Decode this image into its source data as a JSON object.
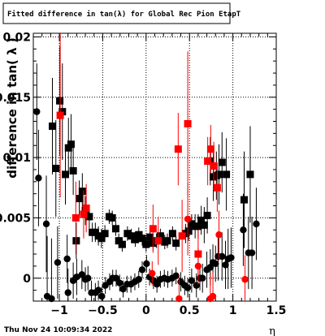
{
  "chart_data": {
    "type": "scatter",
    "title": "Fitted difference in tan(λ) for Global Rec Pion EtapT",
    "xlabel": "η",
    "ylabel": "difference in tan( λ )",
    "timestamp": "Thu Nov 24 10:09:34 2022",
    "xlim": [
      -1.3,
      1.5
    ],
    "ylim": [
      -0.0019,
      0.0203
    ],
    "x_ticks": [
      {
        "v": -1,
        "label": "−1"
      },
      {
        "v": -0.5,
        "label": "−0.5"
      },
      {
        "v": 0,
        "label": "0"
      },
      {
        "v": 0.5,
        "label": "0.5"
      },
      {
        "v": 1,
        "label": "1"
      },
      {
        "v": 1.5,
        "label": "1.5"
      }
    ],
    "y_ticks": [
      {
        "v": 0,
        "label": "0"
      },
      {
        "v": 0.005,
        "label": "0.005"
      },
      {
        "v": 0.01,
        "label": "0.01"
      },
      {
        "v": 0.015,
        "label": "0.015"
      },
      {
        "v": 0.02,
        "label": "0.02"
      }
    ],
    "grid": true,
    "series": [
      {
        "marker": "square",
        "color": "#000000",
        "points": [
          {
            "x": -1.08,
            "y": 0.0126,
            "err": 0.004
          },
          {
            "x": -1.04,
            "y": 0.0091,
            "err": 0.004
          },
          {
            "x": -0.995,
            "y": 0.0147,
            "err": 0.0045
          },
          {
            "x": -0.965,
            "y": 0.0138,
            "err": 0.004
          },
          {
            "x": -0.93,
            "y": 0.0086,
            "err": 0.0025
          },
          {
            "x": -0.895,
            "y": 0.0108,
            "err": 0.0025
          },
          {
            "x": -0.865,
            "y": 0.0111,
            "err": 0.0025
          },
          {
            "x": -0.84,
            "y": 0.0089,
            "err": 0.002
          },
          {
            "x": -0.805,
            "y": 0.0031,
            "err": 0.0015
          },
          {
            "x": -0.77,
            "y": 0.0066,
            "err": 0.0015
          },
          {
            "x": -0.735,
            "y": 0.0072,
            "err": 0.0015
          },
          {
            "x": -0.7,
            "y": 0.0056,
            "err": 0.0012
          },
          {
            "x": -0.655,
            "y": 0.0051,
            "err": 0.001
          },
          {
            "x": -0.62,
            "y": 0.0038,
            "err": 0.0008
          },
          {
            "x": -0.585,
            "y": 0.0038,
            "err": 0.0008
          },
          {
            "x": -0.55,
            "y": 0.0035,
            "err": 0.0008
          },
          {
            "x": -0.515,
            "y": 0.0033,
            "err": 0.0008
          },
          {
            "x": -0.475,
            "y": 0.0037,
            "err": 0.0007
          },
          {
            "x": -0.425,
            "y": 0.0051,
            "err": 0.0006
          },
          {
            "x": -0.39,
            "y": 0.005,
            "err": 0.0006
          },
          {
            "x": -0.35,
            "y": 0.0041,
            "err": 0.0006
          },
          {
            "x": -0.315,
            "y": 0.0031,
            "err": 0.0006
          },
          {
            "x": -0.275,
            "y": 0.0028,
            "err": 0.0006
          },
          {
            "x": -0.215,
            "y": 0.0037,
            "err": 0.0006
          },
          {
            "x": -0.17,
            "y": 0.0035,
            "err": 0.0006
          },
          {
            "x": -0.125,
            "y": 0.0032,
            "err": 0.0006
          },
          {
            "x": -0.085,
            "y": 0.0036,
            "err": 0.0006
          },
          {
            "x": -0.045,
            "y": 0.0033,
            "err": 0.0006
          },
          {
            "x": 0.0,
            "y": 0.0028,
            "err": 0.0006
          },
          {
            "x": 0.045,
            "y": 0.0034,
            "err": 0.0006
          },
          {
            "x": 0.08,
            "y": 0.0029,
            "err": 0.0006
          },
          {
            "x": 0.12,
            "y": 0.0031,
            "err": 0.0006
          },
          {
            "x": 0.165,
            "y": 0.0035,
            "err": 0.0006
          },
          {
            "x": 0.215,
            "y": 0.003,
            "err": 0.0006
          },
          {
            "x": 0.245,
            "y": 0.0031,
            "err": 0.0006
          },
          {
            "x": 0.305,
            "y": 0.0037,
            "err": 0.0006
          },
          {
            "x": 0.345,
            "y": 0.0029,
            "err": 0.0006
          },
          {
            "x": 0.455,
            "y": 0.0037,
            "err": 0.0008
          },
          {
            "x": 0.49,
            "y": 0.0039,
            "err": 0.0008
          },
          {
            "x": 0.525,
            "y": 0.0045,
            "err": 0.0008
          },
          {
            "x": 0.565,
            "y": 0.0043,
            "err": 0.001
          },
          {
            "x": 0.6,
            "y": 0.0043,
            "err": 0.001
          },
          {
            "x": 0.635,
            "y": 0.0048,
            "err": 0.0012
          },
          {
            "x": 0.67,
            "y": 0.0044,
            "err": 0.0015
          },
          {
            "x": 0.705,
            "y": 0.0052,
            "err": 0.0015
          },
          {
            "x": 0.74,
            "y": 0.0097,
            "err": 0.002
          },
          {
            "x": 0.775,
            "y": 0.0084,
            "err": 0.002
          },
          {
            "x": 0.81,
            "y": 0.0085,
            "err": 0.002
          },
          {
            "x": 0.84,
            "y": 0.0086,
            "err": 0.0025
          },
          {
            "x": 0.875,
            "y": 0.0096,
            "err": 0.0025
          },
          {
            "x": 0.925,
            "y": 0.0086,
            "err": 0.003
          },
          {
            "x": 1.13,
            "y": 0.0065,
            "err": 0.004
          },
          {
            "x": 1.2,
            "y": 0.0086,
            "err": 0.004
          }
        ]
      },
      {
        "marker": "circle",
        "color": "#000000",
        "points": [
          {
            "x": -1.26,
            "y": 0.0138,
            "err": 0.004
          },
          {
            "x": -1.24,
            "y": 0.0083,
            "err": 0.004
          },
          {
            "x": -1.15,
            "y": 0.0045,
            "err": 0.004
          },
          {
            "x": -1.14,
            "y": -0.0015,
            "err": 0.005
          },
          {
            "x": -1.09,
            "y": -0.0017,
            "err": 0.005
          },
          {
            "x": -1.02,
            "y": 0.0013,
            "err": 0.003
          },
          {
            "x": -0.91,
            "y": 0.0016,
            "err": 0.002
          },
          {
            "x": -0.9,
            "y": -0.0012,
            "err": 0.002
          },
          {
            "x": -0.84,
            "y": -0.0002,
            "err": 0.0015
          },
          {
            "x": -0.8,
            "y": 0.0001,
            "err": 0.0015
          },
          {
            "x": -0.74,
            "y": 0.0003,
            "err": 0.0012
          },
          {
            "x": -0.7,
            "y": -0.0001,
            "err": 0.001
          },
          {
            "x": -0.67,
            "y": 0.0,
            "err": 0.001
          },
          {
            "x": -0.63,
            "y": -0.0012,
            "err": 0.001
          },
          {
            "x": -0.585,
            "y": -0.0012,
            "err": 0.0008
          },
          {
            "x": -0.55,
            "y": -0.001,
            "err": 0.0008
          },
          {
            "x": -0.51,
            "y": -0.0015,
            "err": 0.0008
          },
          {
            "x": -0.47,
            "y": -0.0006,
            "err": 0.0007
          },
          {
            "x": -0.42,
            "y": -0.0003,
            "err": 0.0007
          },
          {
            "x": -0.385,
            "y": 0.0,
            "err": 0.0007
          },
          {
            "x": -0.345,
            "y": 0.0,
            "err": 0.0007
          },
          {
            "x": -0.305,
            "y": -0.0004,
            "err": 0.0007
          },
          {
            "x": -0.265,
            "y": -0.0009,
            "err": 0.0007
          },
          {
            "x": -0.22,
            "y": -0.0005,
            "err": 0.0007
          },
          {
            "x": -0.175,
            "y": -0.0005,
            "err": 0.0007
          },
          {
            "x": -0.13,
            "y": -0.0003,
            "err": 0.0007
          },
          {
            "x": -0.085,
            "y": -0.0001,
            "err": 0.0007
          },
          {
            "x": -0.045,
            "y": 0.0007,
            "err": 0.0007
          },
          {
            "x": 0.005,
            "y": 0.0012,
            "err": 0.0007
          },
          {
            "x": 0.04,
            "y": 0.0001,
            "err": 0.0007
          },
          {
            "x": 0.085,
            "y": -0.0002,
            "err": 0.0007
          },
          {
            "x": 0.125,
            "y": -0.0005,
            "err": 0.0007
          },
          {
            "x": 0.165,
            "y": -0.0001,
            "err": 0.0007
          },
          {
            "x": 0.21,
            "y": 0.0,
            "err": 0.0007
          },
          {
            "x": 0.25,
            "y": -0.0001,
            "err": 0.0007
          },
          {
            "x": 0.3,
            "y": 0.0,
            "err": 0.0007
          },
          {
            "x": 0.345,
            "y": 0.0002,
            "err": 0.0007
          },
          {
            "x": 0.4,
            "y": -0.0003,
            "err": 0.0008
          },
          {
            "x": 0.445,
            "y": -0.0006,
            "err": 0.0008
          },
          {
            "x": 0.48,
            "y": -0.0008,
            "err": 0.0008
          },
          {
            "x": 0.525,
            "y": -0.0002,
            "err": 0.001
          },
          {
            "x": 0.58,
            "y": -0.0006,
            "err": 0.001
          },
          {
            "x": 0.62,
            "y": 0.0,
            "err": 0.001
          },
          {
            "x": 0.65,
            "y": 0.0,
            "err": 0.0012
          },
          {
            "x": 0.7,
            "y": 0.0007,
            "err": 0.0015
          },
          {
            "x": 0.74,
            "y": 0.0009,
            "err": 0.0015
          },
          {
            "x": 0.77,
            "y": 0.0013,
            "err": 0.0015
          },
          {
            "x": 0.8,
            "y": 0.0012,
            "err": 0.0015
          },
          {
            "x": 0.83,
            "y": 0.0018,
            "err": 0.002
          },
          {
            "x": 0.875,
            "y": 0.0018,
            "err": 0.002
          },
          {
            "x": 0.915,
            "y": 0.0011,
            "err": 0.002
          },
          {
            "x": 0.945,
            "y": 0.0016,
            "err": 0.0025
          },
          {
            "x": 0.98,
            "y": 0.0017,
            "err": 0.0025
          },
          {
            "x": 1.12,
            "y": 0.004,
            "err": 0.003
          },
          {
            "x": 1.18,
            "y": 0.0021,
            "err": 0.003
          },
          {
            "x": 1.22,
            "y": 0.0021,
            "err": 0.003
          },
          {
            "x": 1.27,
            "y": 0.0045,
            "err": 0.003
          }
        ]
      },
      {
        "marker": "square",
        "color": "#ff0000",
        "points": [
          {
            "x": -0.99,
            "y": 0.0135,
            "err": 0.0068
          },
          {
            "x": -0.81,
            "y": 0.005,
            "err": 0.003
          },
          {
            "x": -0.72,
            "y": 0.0053,
            "err": 0.002
          },
          {
            "x": -0.69,
            "y": 0.0058,
            "err": 0.002
          },
          {
            "x": 0.08,
            "y": 0.0041,
            "err": 0.002
          },
          {
            "x": 0.14,
            "y": 0.0031,
            "err": 0.002
          },
          {
            "x": 0.37,
            "y": 0.0107,
            "err": 0.003
          },
          {
            "x": 0.415,
            "y": 0.0035,
            "err": 0.003
          },
          {
            "x": 0.48,
            "y": 0.0128,
            "err": 0.006
          },
          {
            "x": 0.6,
            "y": 0.002,
            "err": 0.002
          },
          {
            "x": 0.71,
            "y": 0.0097,
            "err": 0.002
          },
          {
            "x": 0.745,
            "y": 0.0107,
            "err": 0.002
          },
          {
            "x": 0.78,
            "y": 0.0093,
            "err": 0.002
          },
          {
            "x": 0.82,
            "y": 0.0075,
            "err": 0.002
          }
        ]
      },
      {
        "marker": "circle",
        "color": "#ff0000",
        "points": [
          {
            "x": 0.07,
            "y": 0.0004,
            "err": 0.001
          },
          {
            "x": 0.38,
            "y": -0.0017,
            "err": 0.002
          },
          {
            "x": 0.48,
            "y": 0.0049,
            "err": 0.003
          },
          {
            "x": 0.6,
            "y": 0.001,
            "err": 0.0015
          },
          {
            "x": 0.74,
            "y": -0.0017,
            "err": 0.002
          },
          {
            "x": 0.77,
            "y": -0.0015,
            "err": 0.002
          },
          {
            "x": 0.84,
            "y": 0.0036,
            "err": 0.002
          },
          {
            "x": 1.14,
            "y": -0.0001,
            "err": 0.002
          }
        ]
      }
    ]
  }
}
